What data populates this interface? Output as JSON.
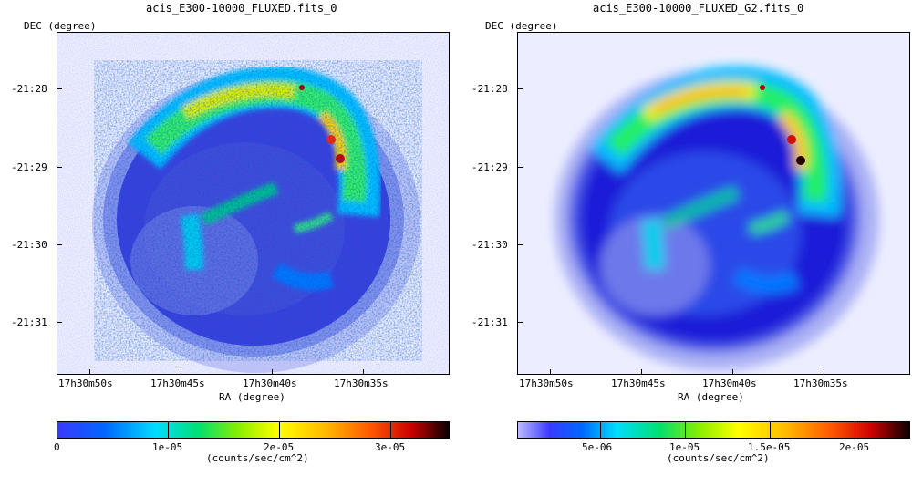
{
  "colors": {
    "cmap": [
      "#0000cc",
      "#0033ff",
      "#00aaff",
      "#00ffee",
      "#00e060",
      "#66ee00",
      "#ffff00",
      "#ffcc00",
      "#ff8800",
      "#ff3300",
      "#cc0000",
      "#000000"
    ],
    "bg": "#eef0ff"
  },
  "left": {
    "title": "acis_E300-10000_FLUXED.fits_0",
    "dec_label": "DEC (degree)",
    "ra_label": "RA (degree)",
    "dec_ticks": [
      "-21:28",
      "-21:29",
      "-21:30",
      "-21:31"
    ],
    "ra_ticks": [
      "17h30m50s",
      "17h30m45s",
      "17h30m40s",
      "17h30m35s"
    ],
    "colorbar": {
      "ticks": [
        "0",
        "1e-05",
        "2e-05",
        "3e-05"
      ],
      "unit": "(counts/sec/cm^2)"
    }
  },
  "right": {
    "title": "acis_E300-10000_FLUXED_G2.fits_0",
    "dec_label": "DEC (degree)",
    "ra_label": "RA (degree)",
    "dec_ticks": [
      "-21:28",
      "-21:29",
      "-21:30",
      "-21:31"
    ],
    "ra_ticks": [
      "17h30m50s",
      "17h30m45s",
      "17h30m40s",
      "17h30m35s"
    ],
    "colorbar": {
      "ticks": [
        "5e-06",
        "1e-05",
        "1.5e-05",
        "2e-05"
      ],
      "unit": "(counts/sec/cm^2)"
    }
  }
}
